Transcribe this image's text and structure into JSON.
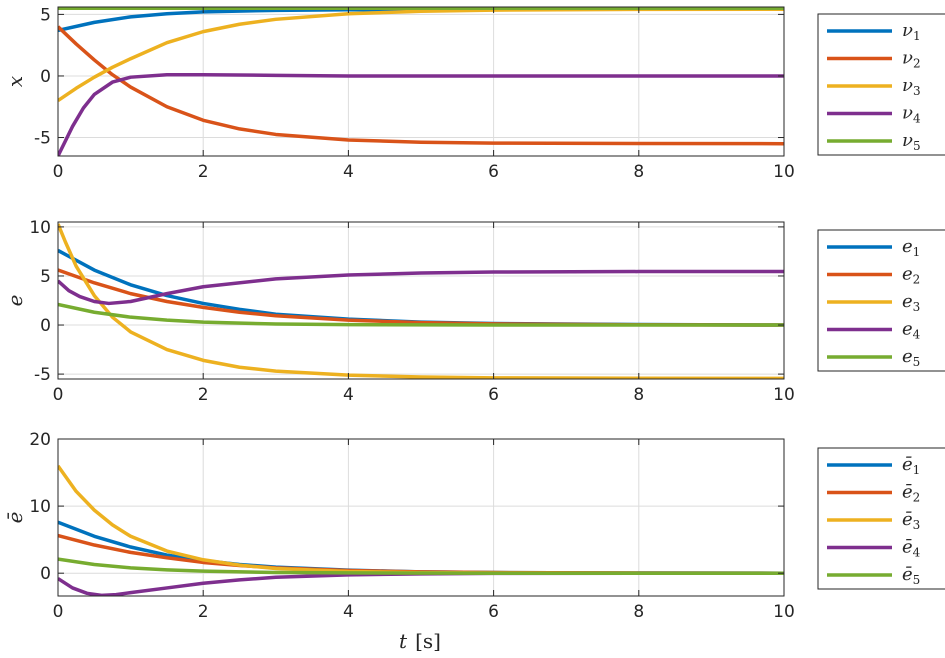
{
  "colors": {
    "blue": "#0072BD",
    "orange": "#D95319",
    "yellow": "#EDB120",
    "purple": "#7E2F8E",
    "green": "#77AC30"
  },
  "xlabel": {
    "var": "t",
    "unit": "[s]"
  },
  "chart_data": [
    {
      "type": "line",
      "ylabel": "x",
      "xlim": [
        0,
        10
      ],
      "ylim": [
        -6.5,
        5.6
      ],
      "xticks": [
        0,
        2,
        4,
        6,
        8,
        10
      ],
      "xtick_labels": [
        "0",
        "2",
        "4",
        "6",
        "8",
        "10"
      ],
      "yticks": [
        -5,
        0,
        5
      ],
      "ytick_labels": [
        "-5",
        "0",
        "5"
      ],
      "grid": true,
      "legend_position": "right",
      "series": [
        {
          "name": "ν",
          "sub": "1",
          "color": "#0072BD",
          "x": [
            0,
            0.5,
            1,
            1.5,
            2,
            3,
            4,
            5,
            6,
            8,
            10
          ],
          "y": [
            3.7,
            4.35,
            4.8,
            5.05,
            5.2,
            5.33,
            5.38,
            5.4,
            5.41,
            5.42,
            5.42
          ]
        },
        {
          "name": "ν",
          "sub": "2",
          "color": "#D95319",
          "x": [
            0,
            0.25,
            0.5,
            0.75,
            1,
            1.5,
            2,
            2.5,
            3,
            4,
            5,
            6,
            8,
            10
          ],
          "y": [
            4.0,
            2.6,
            1.3,
            0.1,
            -0.9,
            -2.5,
            -3.6,
            -4.3,
            -4.75,
            -5.2,
            -5.38,
            -5.45,
            -5.49,
            -5.5
          ]
        },
        {
          "name": "ν",
          "sub": "3",
          "color": "#EDB120",
          "x": [
            0,
            0.25,
            0.5,
            0.75,
            1,
            1.5,
            2,
            2.5,
            3,
            4,
            5,
            6,
            8,
            10
          ],
          "y": [
            -2.0,
            -1.0,
            -0.1,
            0.7,
            1.4,
            2.7,
            3.6,
            4.2,
            4.6,
            5.05,
            5.25,
            5.35,
            5.41,
            5.42
          ]
        },
        {
          "name": "ν",
          "sub": "4",
          "color": "#7E2F8E",
          "x": [
            0,
            0.1,
            0.2,
            0.35,
            0.5,
            0.75,
            1,
            1.5,
            2,
            3,
            4,
            6,
            8,
            10
          ],
          "y": [
            -6.5,
            -5.3,
            -4.1,
            -2.6,
            -1.5,
            -0.5,
            -0.1,
            0.1,
            0.1,
            0.05,
            0.0,
            0.0,
            0.0,
            0.0
          ]
        },
        {
          "name": "ν",
          "sub": "5",
          "color": "#77AC30",
          "x": [
            0,
            2,
            4,
            6,
            8,
            10
          ],
          "y": [
            5.5,
            5.5,
            5.5,
            5.5,
            5.5,
            5.5
          ]
        }
      ]
    },
    {
      "type": "line",
      "ylabel": "e",
      "xlim": [
        0,
        10
      ],
      "ylim": [
        -5.5,
        10.5
      ],
      "xticks": [
        0,
        2,
        4,
        6,
        8,
        10
      ],
      "xtick_labels": [
        "0",
        "2",
        "4",
        "6",
        "8",
        "10"
      ],
      "yticks": [
        -5,
        0,
        5,
        10
      ],
      "ytick_labels": [
        "-5",
        "0",
        "5",
        "10"
      ],
      "grid": true,
      "legend_position": "right",
      "series": [
        {
          "name": "e",
          "sub": "1",
          "color": "#0072BD",
          "x": [
            0,
            0.5,
            1,
            1.5,
            2,
            2.5,
            3,
            4,
            5,
            6,
            8,
            10
          ],
          "y": [
            7.6,
            5.6,
            4.1,
            3.0,
            2.2,
            1.6,
            1.1,
            0.6,
            0.3,
            0.15,
            0.05,
            0.0
          ]
        },
        {
          "name": "e",
          "sub": "2",
          "color": "#D95319",
          "x": [
            0,
            0.5,
            1,
            1.5,
            2,
            2.5,
            3,
            4,
            5,
            6,
            8,
            10
          ],
          "y": [
            5.6,
            4.3,
            3.2,
            2.4,
            1.8,
            1.3,
            0.95,
            0.5,
            0.25,
            0.12,
            0.03,
            0.0
          ]
        },
        {
          "name": "e",
          "sub": "3",
          "color": "#EDB120",
          "x": [
            0,
            0.1,
            0.25,
            0.5,
            0.75,
            1,
            1.5,
            2,
            2.5,
            3,
            4,
            5,
            6,
            8,
            10
          ],
          "y": [
            10.3,
            8.5,
            6.0,
            3.0,
            0.8,
            -0.7,
            -2.5,
            -3.6,
            -4.3,
            -4.7,
            -5.1,
            -5.3,
            -5.38,
            -5.42,
            -5.44
          ]
        },
        {
          "name": "e",
          "sub": "4",
          "color": "#7E2F8E",
          "x": [
            0,
            0.15,
            0.3,
            0.5,
            0.7,
            1,
            1.5,
            2,
            3,
            4,
            5,
            6,
            8,
            10
          ],
          "y": [
            4.5,
            3.5,
            2.9,
            2.4,
            2.2,
            2.4,
            3.2,
            3.9,
            4.7,
            5.1,
            5.3,
            5.4,
            5.45,
            5.45
          ]
        },
        {
          "name": "e",
          "sub": "5",
          "color": "#77AC30",
          "x": [
            0,
            0.5,
            1,
            1.5,
            2,
            3,
            4,
            6,
            8,
            10
          ],
          "y": [
            2.1,
            1.3,
            0.8,
            0.5,
            0.3,
            0.1,
            0.04,
            0.0,
            0.0,
            0.0
          ]
        }
      ]
    },
    {
      "type": "line",
      "ylabel": "ē",
      "xlim": [
        0,
        10
      ],
      "ylim": [
        -3.4,
        20
      ],
      "xticks": [
        0,
        2,
        4,
        6,
        8,
        10
      ],
      "xtick_labels": [
        "0",
        "2",
        "4",
        "6",
        "8",
        "10"
      ],
      "yticks": [
        0,
        10,
        20
      ],
      "ytick_labels": [
        "0",
        "10",
        "20"
      ],
      "grid": true,
      "legend_position": "right",
      "series": [
        {
          "name": "ē",
          "sub": "1",
          "color": "#0072BD",
          "x": [
            0,
            0.5,
            1,
            1.5,
            2,
            2.5,
            3,
            4,
            5,
            6,
            8,
            10
          ],
          "y": [
            7.6,
            5.5,
            3.9,
            2.7,
            1.9,
            1.3,
            0.9,
            0.45,
            0.2,
            0.1,
            0.02,
            0.0
          ]
        },
        {
          "name": "ē",
          "sub": "2",
          "color": "#D95319",
          "x": [
            0,
            0.5,
            1,
            1.5,
            2,
            2.5,
            3,
            4,
            5,
            6,
            8,
            10
          ],
          "y": [
            5.6,
            4.2,
            3.1,
            2.3,
            1.6,
            1.15,
            0.8,
            0.4,
            0.2,
            0.1,
            0.02,
            0.0
          ]
        },
        {
          "name": "ē",
          "sub": "3",
          "color": "#EDB120",
          "x": [
            0,
            0.25,
            0.5,
            0.75,
            1,
            1.5,
            2,
            2.5,
            3,
            4,
            5,
            6,
            8,
            10
          ],
          "y": [
            16.0,
            12.2,
            9.4,
            7.2,
            5.5,
            3.3,
            2.0,
            1.2,
            0.7,
            0.25,
            0.08,
            0.03,
            0.0,
            0.0
          ]
        },
        {
          "name": "ē",
          "sub": "4",
          "color": "#7E2F8E",
          "x": [
            0,
            0.2,
            0.4,
            0.6,
            0.8,
            1,
            1.5,
            2,
            2.5,
            3,
            4,
            5,
            6,
            8,
            10
          ],
          "y": [
            -0.8,
            -2.2,
            -3.0,
            -3.3,
            -3.2,
            -2.9,
            -2.2,
            -1.5,
            -1.0,
            -0.6,
            -0.25,
            -0.1,
            -0.03,
            0.0,
            0.0
          ]
        },
        {
          "name": "ē",
          "sub": "5",
          "color": "#77AC30",
          "x": [
            0,
            0.5,
            1,
            1.5,
            2,
            3,
            4,
            6,
            8,
            10
          ],
          "y": [
            2.1,
            1.3,
            0.8,
            0.5,
            0.3,
            0.1,
            0.04,
            0.0,
            0.0,
            0.0
          ]
        }
      ]
    }
  ]
}
